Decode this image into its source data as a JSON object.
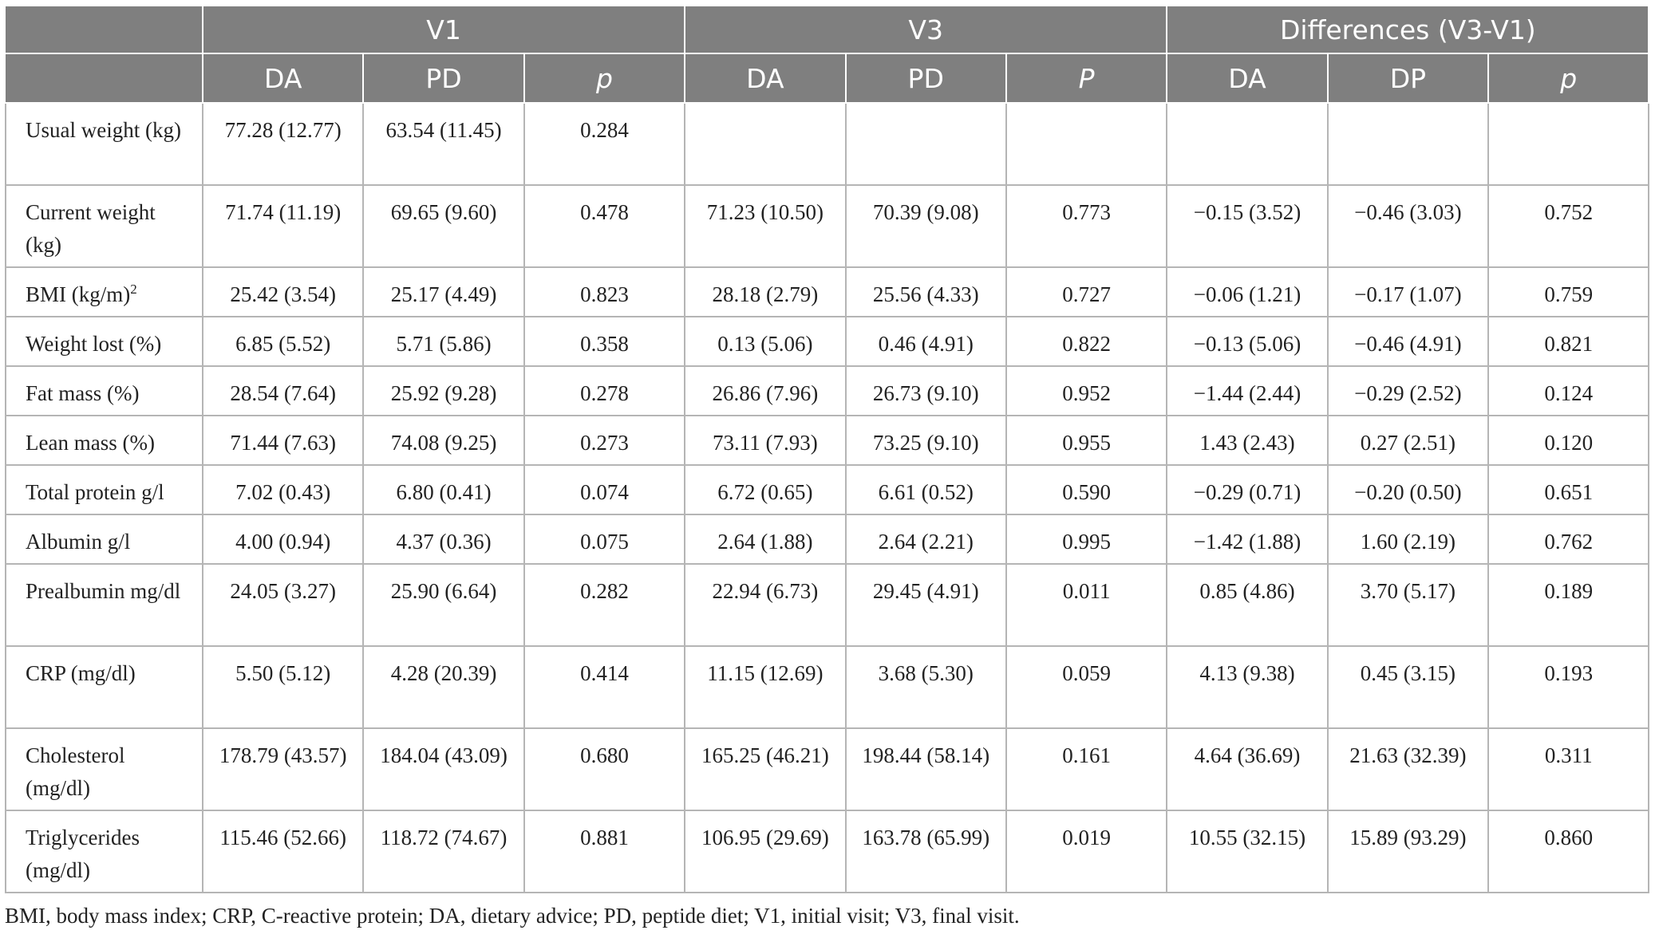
{
  "header": {
    "groups": [
      "V1",
      "V3",
      "Differences (V3-V1)"
    ],
    "subheaders": [
      "DA",
      "PD",
      "p",
      "DA",
      "PD",
      "P",
      "DA",
      "DP",
      "p"
    ]
  },
  "rows": [
    {
      "label": "Usual weight (kg)",
      "cells": [
        "77.28 (12.77)",
        "63.54 (11.45)",
        "0.284",
        "",
        "",
        "",
        "",
        "",
        ""
      ]
    },
    {
      "label": "Current weight (kg)",
      "cells": [
        "71.74 (11.19)",
        "69.65 (9.60)",
        "0.478",
        "71.23 (10.50)",
        "70.39 (9.08)",
        "0.773",
        "−0.15 (3.52)",
        "−0.46 (3.03)",
        "0.752"
      ]
    },
    {
      "label": "BMI (kg/m)",
      "label_sup": "2",
      "cells": [
        "25.42 (3.54)",
        "25.17 (4.49)",
        "0.823",
        "28.18 (2.79)",
        "25.56 (4.33)",
        "0.727",
        "−0.06 (1.21)",
        "−0.17 (1.07)",
        "0.759"
      ]
    },
    {
      "label": "Weight lost (%)",
      "cells": [
        "6.85 (5.52)",
        "5.71 (5.86)",
        "0.358",
        "0.13 (5.06)",
        "0.46 (4.91)",
        "0.822",
        "−0.13 (5.06)",
        "−0.46 (4.91)",
        "0.821"
      ]
    },
    {
      "label": "Fat mass (%)",
      "cells": [
        "28.54 (7.64)",
        "25.92 (9.28)",
        "0.278",
        "26.86 (7.96)",
        "26.73 (9.10)",
        "0.952",
        "−1.44 (2.44)",
        "−0.29 (2.52)",
        "0.124"
      ]
    },
    {
      "label": "Lean mass (%)",
      "cells": [
        "71.44 (7.63)",
        "74.08 (9.25)",
        "0.273",
        "73.11 (7.93)",
        "73.25 (9.10)",
        "0.955",
        "1.43 (2.43)",
        "0.27 (2.51)",
        "0.120"
      ]
    },
    {
      "label": "Total protein g/l",
      "cells": [
        "7.02 (0.43)",
        "6.80 (0.41)",
        "0.074",
        "6.72 (0.65)",
        "6.61 (0.52)",
        "0.590",
        "−0.29 (0.71)",
        "−0.20 (0.50)",
        "0.651"
      ]
    },
    {
      "label": "Albumin g/l",
      "cells": [
        "4.00 (0.94)",
        "4.37 (0.36)",
        "0.075",
        "2.64 (1.88)",
        "2.64 (2.21)",
        "0.995",
        "−1.42 (1.88)",
        "1.60 (2.19)",
        "0.762"
      ]
    },
    {
      "label": "Prealbumin mg/dl",
      "cells": [
        "24.05 (3.27)",
        "25.90 (6.64)",
        "0.282",
        "22.94 (6.73)",
        "29.45 (4.91)",
        "0.011",
        "0.85 (4.86)",
        "3.70 (5.17)",
        "0.189"
      ]
    },
    {
      "label": "CRP (mg/dl)",
      "cells": [
        "5.50 (5.12)",
        "4.28 (20.39)",
        "0.414",
        "11.15 (12.69)",
        "3.68 (5.30)",
        "0.059",
        "4.13 (9.38)",
        "0.45 (3.15)",
        "0.193"
      ]
    },
    {
      "label": "Cholesterol (mg/dl)",
      "cells": [
        "178.79 (43.57)",
        "184.04 (43.09)",
        "0.680",
        "165.25 (46.21)",
        "198.44 (58.14)",
        "0.161",
        "4.64 (36.69)",
        "21.63 (32.39)",
        "0.311"
      ]
    },
    {
      "label": "Triglycerides (mg/dl)",
      "cells": [
        "115.46 (52.66)",
        "118.72 (74.67)",
        "0.881",
        "106.95 (29.69)",
        "163.78 (65.99)",
        "0.019",
        "10.55 (32.15)",
        "15.89 (93.29)",
        "0.860"
      ]
    }
  ],
  "footnote": "BMI, body mass index; CRP, C-reactive protein; DA, dietary advice; PD, peptide diet; V1, initial visit; V3, final visit."
}
